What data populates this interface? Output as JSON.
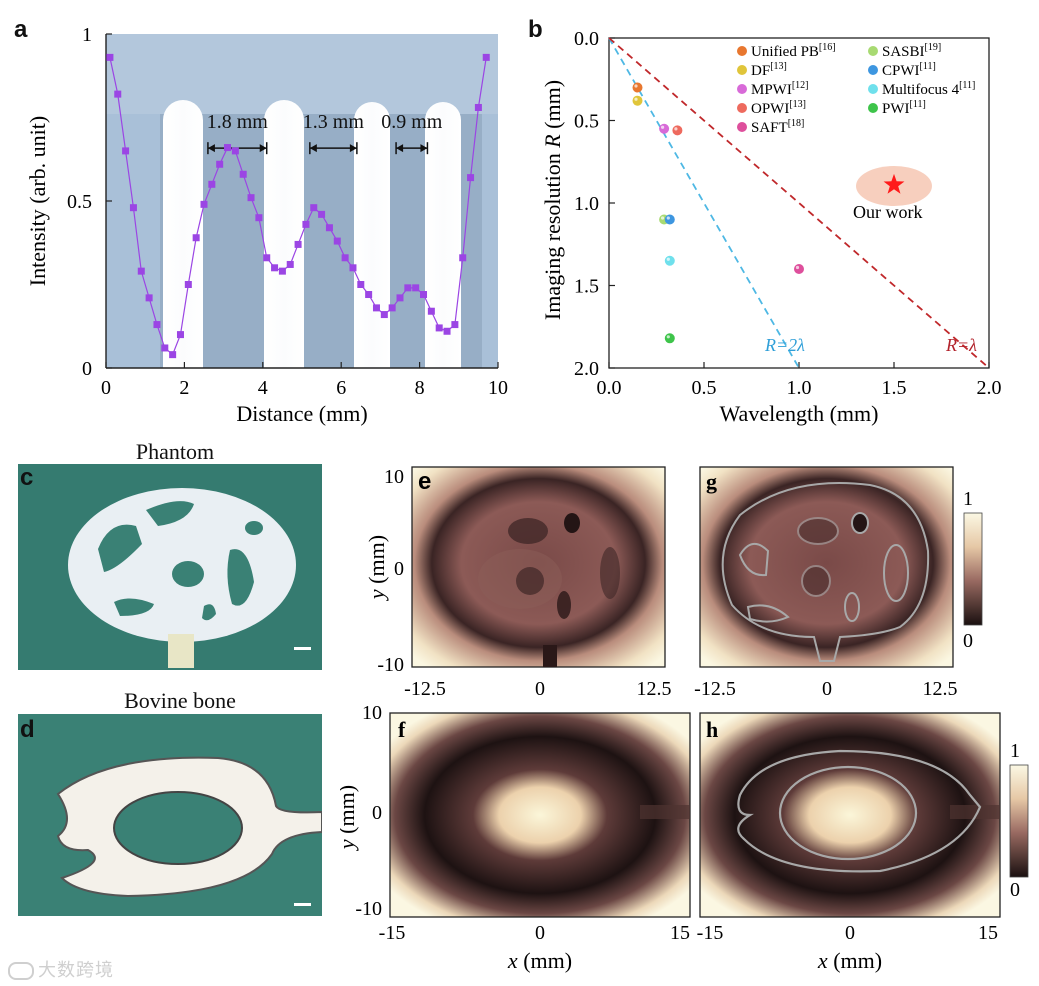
{
  "panels": {
    "a": {
      "letter": "a",
      "xlabel": "Distance (mm)",
      "ylabel": "Intensity (arb. unit)",
      "xticks": [
        "0",
        "2",
        "4",
        "6",
        "8",
        "10"
      ],
      "yticks": [
        "0",
        "0.5",
        "1"
      ],
      "annotations": [
        "1.8 mm",
        "1.3 mm",
        "0.9 mm"
      ]
    },
    "b": {
      "letter": "b",
      "xlabel": "Wavelength (mm)",
      "ylabel_main": "Imaging resolution ",
      "ylabel_var": "R",
      "ylabel_unit": " (mm)",
      "xticks": [
        "0.0",
        "0.5",
        "1.0",
        "1.5",
        "2.0"
      ],
      "yticks": [
        "0.0",
        "0.5",
        "1.0",
        "1.5",
        "2.0"
      ],
      "line_blue": "R=2λ",
      "line_red": "R=λ",
      "our_work": "Our work"
    },
    "c": {
      "letter": "c",
      "title": "Phantom"
    },
    "d": {
      "letter": "d",
      "title": "Bovine bone"
    },
    "e": {
      "letter": "e"
    },
    "f": {
      "letter": "f"
    },
    "g": {
      "letter": "g"
    },
    "h": {
      "letter": "h"
    },
    "maps": {
      "ylabel_var": "y",
      "ylabel_unit": " (mm)",
      "xlabel_var": "x",
      "xlabel_unit": " (mm)",
      "top_yticks": [
        "10",
        "0",
        "-10"
      ],
      "top_xticks": [
        "-12.5",
        "0",
        "12.5"
      ],
      "bottom_yticks": [
        "10",
        "0",
        "-10"
      ],
      "bottom_xticks": [
        "-15",
        "0",
        "15"
      ],
      "colorbar_max": "1",
      "colorbar_min": "0"
    }
  },
  "chart_data": [
    {
      "type": "line",
      "panel": "a",
      "xlabel": "Distance (mm)",
      "ylabel": "Intensity (arb. unit)",
      "xlim": [
        0,
        10
      ],
      "ylim": [
        0,
        1
      ],
      "series": [
        {
          "name": "intensity",
          "color": "#9b45e4",
          "x": [
            0.1,
            0.3,
            0.5,
            0.7,
            0.9,
            1.1,
            1.3,
            1.5,
            1.7,
            1.9,
            2.1,
            2.3,
            2.5,
            2.7,
            2.9,
            3.1,
            3.3,
            3.5,
            3.7,
            3.9,
            4.1,
            4.3,
            4.5,
            4.7,
            4.9,
            5.1,
            5.3,
            5.5,
            5.7,
            5.9,
            6.1,
            6.3,
            6.5,
            6.7,
            6.9,
            7.1,
            7.3,
            7.5,
            7.7,
            7.9,
            8.1,
            8.3,
            8.5,
            8.7,
            8.9,
            9.1,
            9.3,
            9.5,
            9.7
          ],
          "y": [
            0.93,
            0.82,
            0.65,
            0.48,
            0.29,
            0.21,
            0.13,
            0.06,
            0.04,
            0.1,
            0.25,
            0.39,
            0.49,
            0.55,
            0.61,
            0.66,
            0.65,
            0.58,
            0.51,
            0.45,
            0.33,
            0.3,
            0.29,
            0.31,
            0.37,
            0.43,
            0.48,
            0.46,
            0.42,
            0.38,
            0.33,
            0.3,
            0.25,
            0.22,
            0.18,
            0.16,
            0.18,
            0.21,
            0.24,
            0.24,
            0.22,
            0.17,
            0.12,
            0.11,
            0.13,
            0.33,
            0.57,
            0.78,
            0.93
          ]
        }
      ],
      "annotations": [
        {
          "text": "1.8 mm",
          "x_from": 2.6,
          "x_to": 4.1,
          "y": 0.73
        },
        {
          "text": "1.3 mm",
          "x_from": 5.2,
          "x_to": 6.4,
          "y": 0.73
        },
        {
          "text": "0.9 mm",
          "x_from": 7.4,
          "x_to": 8.2,
          "y": 0.73
        }
      ]
    },
    {
      "type": "scatter",
      "panel": "b",
      "xlabel": "Wavelength (mm)",
      "ylabel": "Imaging resolution R (mm)",
      "xlim": [
        0,
        2
      ],
      "ylim": [
        2,
        0
      ],
      "series": [
        {
          "name": "Unified PB",
          "ref": "[16]",
          "color": "#e8772f",
          "x": [
            0.15
          ],
          "y": [
            0.3
          ]
        },
        {
          "name": "DF",
          "ref": "[13]",
          "color": "#e0c53a",
          "x": [
            0.15
          ],
          "y": [
            0.38
          ]
        },
        {
          "name": "MPWI",
          "ref": "[12]",
          "color": "#d86ad8",
          "x": [
            0.29
          ],
          "y": [
            0.55
          ]
        },
        {
          "name": "OPWI",
          "ref": "[13]",
          "color": "#ee6a5e",
          "x": [
            0.36
          ],
          "y": [
            0.56
          ]
        },
        {
          "name": "SAFT",
          "ref": "[18]",
          "color": "#de4f9c",
          "x": [
            1.0
          ],
          "y": [
            1.4
          ]
        },
        {
          "name": "SASBI",
          "ref": "[19]",
          "color": "#a8da72",
          "x": [
            0.29
          ],
          "y": [
            1.1
          ]
        },
        {
          "name": "CPWI",
          "ref": "[11]",
          "color": "#3d96e0",
          "x": [
            0.32
          ],
          "y": [
            1.1
          ]
        },
        {
          "name": "Multifocus 4",
          "ref": "[11]",
          "color": "#6fe0ec",
          "x": [
            0.32
          ],
          "y": [
            1.35
          ]
        },
        {
          "name": "PWI",
          "ref": "[11]",
          "color": "#3ec44a",
          "x": [
            0.32
          ],
          "y": [
            1.82
          ]
        },
        {
          "name": "Our work",
          "ref": "",
          "color": "#ff1a1a",
          "x": [
            1.5
          ],
          "y": [
            0.89
          ]
        }
      ],
      "lines": [
        {
          "label": "R=2λ",
          "color": "#4eb8e4",
          "x": [
            0,
            1.0
          ],
          "y": [
            0,
            2.0
          ]
        },
        {
          "label": "R=λ",
          "color": "#c0282b",
          "x": [
            0,
            2.0
          ],
          "y": [
            0,
            2.0
          ]
        }
      ]
    }
  ],
  "watermark": "大数跨境"
}
